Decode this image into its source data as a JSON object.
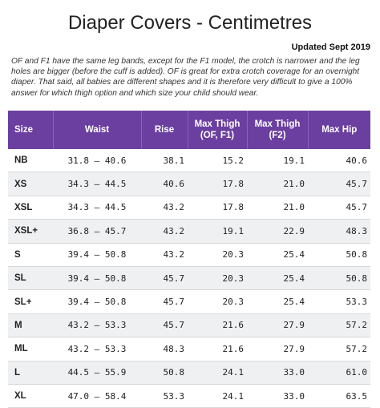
{
  "title": "Diaper Covers - Centimetres",
  "updated": "Updated Sept 2019",
  "note": "OF and F1 have the same leg bands, except for the F1 model, the crotch is narrower and the leg holes are bigger (before the cuff is added). OF is great for extra crotch coverage for an overnight diaper. That said, all babies are different shapes and it is therefore very difficult to give a 100% answer for which thigh option and which size your child should wear.",
  "table": {
    "headers": {
      "size": "Size",
      "waist": "Waist",
      "rise": "Rise",
      "thigh_of_f1_line1": "Max Thigh",
      "thigh_of_f1_line2": "(OF, F1)",
      "thigh_f2_line1": "Max Thigh",
      "thigh_f2_line2": "(F2)",
      "hip": "Max Hip"
    },
    "rows": [
      {
        "size": "NB",
        "waist": "31.8 – 40.6",
        "rise": "38.1",
        "thigh_of_f1": "15.2",
        "thigh_f2": "19.1",
        "hip": "40.6"
      },
      {
        "size": "XS",
        "waist": "34.3 – 44.5",
        "rise": "40.6",
        "thigh_of_f1": "17.8",
        "thigh_f2": "21.0",
        "hip": "45.7"
      },
      {
        "size": "XSL",
        "waist": "34.3 – 44.5",
        "rise": "43.2",
        "thigh_of_f1": "17.8",
        "thigh_f2": "21.0",
        "hip": "45.7"
      },
      {
        "size": "XSL+",
        "waist": "36.8 – 45.7",
        "rise": "43.2",
        "thigh_of_f1": "19.1",
        "thigh_f2": "22.9",
        "hip": "48.3"
      },
      {
        "size": "S",
        "waist": "39.4 – 50.8",
        "rise": "43.2",
        "thigh_of_f1": "20.3",
        "thigh_f2": "25.4",
        "hip": "50.8"
      },
      {
        "size": "SL",
        "waist": "39.4 – 50.8",
        "rise": "45.7",
        "thigh_of_f1": "20.3",
        "thigh_f2": "25.4",
        "hip": "50.8"
      },
      {
        "size": "SL+",
        "waist": "39.4 – 50.8",
        "rise": "45.7",
        "thigh_of_f1": "20.3",
        "thigh_f2": "25.4",
        "hip": "53.3"
      },
      {
        "size": "M",
        "waist": "43.2 – 53.3",
        "rise": "45.7",
        "thigh_of_f1": "21.6",
        "thigh_f2": "27.9",
        "hip": "57.2"
      },
      {
        "size": "ML",
        "waist": "43.2 – 53.3",
        "rise": "48.3",
        "thigh_of_f1": "21.6",
        "thigh_f2": "27.9",
        "hip": "57.2"
      },
      {
        "size": "L",
        "waist": "44.5 – 55.9",
        "rise": "50.8",
        "thigh_of_f1": "24.1",
        "thigh_f2": "33.0",
        "hip": "61.0"
      },
      {
        "size": "XL",
        "waist": "47.0 – 58.4",
        "rise": "53.3",
        "thigh_of_f1": "24.1",
        "thigh_f2": "33.0",
        "hip": "63.5"
      }
    ]
  },
  "colors": {
    "header_bg": "#6b3fa0",
    "header_text": "#ffffff",
    "stripe": "#eff0f2"
  }
}
